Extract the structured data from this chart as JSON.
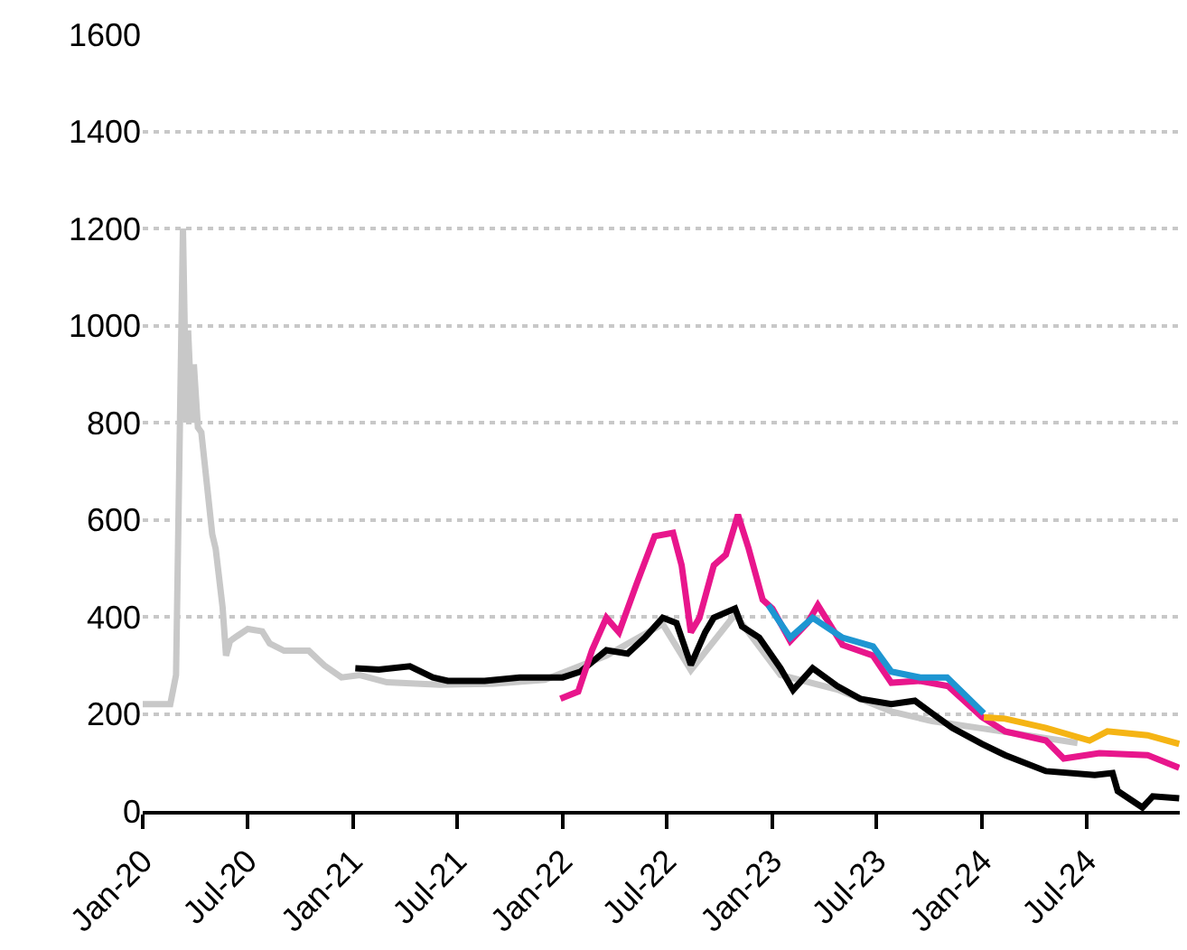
{
  "chart_data": {
    "type": "line",
    "grid": "y",
    "xlim": [
      "2020-01-01",
      "2024-12-10"
    ],
    "xticks": [
      {
        "value": "2020-01-01",
        "label": "Jan-20"
      },
      {
        "value": "2020-07-01",
        "label": "Jul-20"
      },
      {
        "value": "2021-01-01",
        "label": "Jan-21"
      },
      {
        "value": "2021-07-01",
        "label": "Jul-21"
      },
      {
        "value": "2022-01-01",
        "label": "Jan-22"
      },
      {
        "value": "2022-07-01",
        "label": "Jul-22"
      },
      {
        "value": "2023-01-01",
        "label": "Jan-23"
      },
      {
        "value": "2023-07-01",
        "label": "Jul-23"
      },
      {
        "value": "2024-01-01",
        "label": "Jan-24"
      },
      {
        "value": "2024-07-01",
        "label": "Jul-24"
      }
    ],
    "ylim": [
      0,
      1600
    ],
    "yticks": [
      0,
      200,
      400,
      600,
      800,
      1000,
      1200,
      1400,
      1600
    ],
    "series": [
      {
        "color": "#c8c8c8",
        "x": [
          "2020-01-01",
          "2020-02-18",
          "2020-02-28",
          "2020-03-11",
          "2020-03-17",
          "2020-03-20",
          "2020-03-27",
          "2020-03-30",
          "2020-04-06",
          "2020-04-12",
          "2020-05-01",
          "2020-05-07",
          "2020-05-19",
          "2020-05-25",
          "2020-06-01",
          "2020-06-13",
          "2020-07-02",
          "2020-07-27",
          "2020-08-09",
          "2020-09-03",
          "2020-10-16",
          "2020-11-12",
          "2020-12-12",
          "2021-01-13",
          "2021-03-01",
          "2021-06-01",
          "2021-09-01",
          "2021-12-01",
          "2022-03-18",
          "2022-06-24",
          "2022-08-12",
          "2022-10-28",
          "2023-01-15",
          "2023-04-24",
          "2023-07-27",
          "2023-10-06",
          "2024-01-01",
          "2024-04-21",
          "2024-06-15"
        ],
        "values": [
          220,
          220,
          280,
          1200,
          800,
          990,
          800,
          920,
          790,
          780,
          570,
          540,
          420,
          320,
          350,
          360,
          375,
          370,
          345,
          330,
          330,
          300,
          275,
          280,
          265,
          260,
          262,
          270,
          320,
          385,
          290,
          405,
          280,
          250,
          205,
          185,
          170,
          150,
          140
        ]
      },
      {
        "color": "#000000",
        "x": [
          "2021-01-05",
          "2021-02-15",
          "2021-04-10",
          "2021-05-20",
          "2021-06-15",
          "2021-08-18",
          "2021-10-18",
          "2022-01-01",
          "2022-02-01",
          "2022-03-18",
          "2022-04-24",
          "2022-05-24",
          "2022-06-24",
          "2022-07-18",
          "2022-08-12",
          "2022-09-06",
          "2022-09-21",
          "2022-10-28",
          "2022-11-09",
          "2022-12-09",
          "2023-01-15",
          "2023-02-06",
          "2023-03-12",
          "2023-04-24",
          "2023-06-03",
          "2023-07-27",
          "2023-09-06",
          "2023-10-06",
          "2023-11-10",
          "2024-01-01",
          "2024-02-10",
          "2024-04-21",
          "2024-07-15",
          "2024-08-15",
          "2024-08-24",
          "2024-10-06",
          "2024-10-24",
          "2024-12-09"
        ],
        "values": [
          294,
          291,
          298,
          275,
          268,
          268,
          275,
          275,
          287,
          331,
          324,
          357,
          398,
          387,
          301,
          368,
          398,
          417,
          380,
          357,
          294,
          249,
          294,
          257,
          231,
          220,
          227,
          201,
          171,
          138,
          115,
          82,
          74,
          78,
          41,
          7,
          30,
          26
        ]
      },
      {
        "color": "#e8168c",
        "x": [
          "2021-12-28",
          "2022-01-28",
          "2022-02-21",
          "2022-03-18",
          "2022-04-09",
          "2022-05-10",
          "2022-06-10",
          "2022-07-12",
          "2022-07-27",
          "2022-08-12",
          "2022-08-27",
          "2022-09-21",
          "2022-10-12",
          "2022-11-02",
          "2022-11-20",
          "2022-12-15",
          "2023-01-01",
          "2023-02-01",
          "2023-03-03",
          "2023-03-21",
          "2023-05-03",
          "2023-06-25",
          "2023-07-27",
          "2023-09-15",
          "2023-11-03",
          "2024-01-01",
          "2024-02-10",
          "2024-04-21",
          "2024-05-22",
          "2024-07-23",
          "2024-10-15",
          "2024-12-09"
        ],
        "values": [
          231,
          246,
          331,
          398,
          368,
          469,
          566,
          573,
          506,
          368,
          398,
          506,
          528,
          610,
          543,
          435,
          417,
          350,
          387,
          424,
          342,
          320,
          264,
          268,
          257,
          193,
          164,
          145,
          108,
          119,
          115,
          89
        ]
      },
      {
        "color": "#1e96d2",
        "x": [
          "2022-12-25",
          "2023-02-01",
          "2023-03-12",
          "2023-05-03",
          "2023-06-25",
          "2023-07-27",
          "2023-09-15",
          "2023-11-01",
          "2024-01-04"
        ],
        "values": [
          424,
          357,
          398,
          357,
          339,
          287,
          275,
          275,
          201
        ]
      },
      {
        "color": "#f5b414",
        "x": [
          "2024-01-04",
          "2024-02-10",
          "2024-04-21",
          "2024-07-06",
          "2024-08-06",
          "2024-10-15",
          "2024-12-09"
        ],
        "values": [
          193,
          190,
          171,
          145,
          164,
          156,
          138
        ]
      }
    ]
  }
}
